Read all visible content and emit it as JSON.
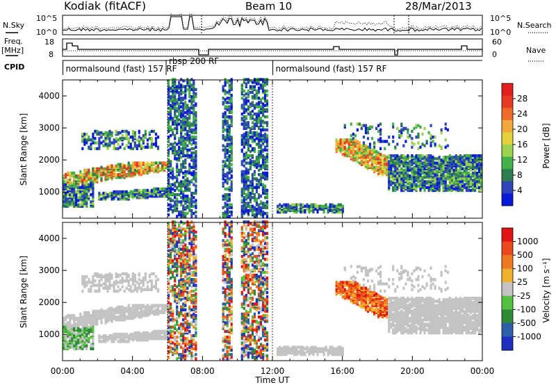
{
  "header": {
    "station": "Kodiak (fitACF)",
    "beam": "Beam 10",
    "date": "28/Mar/2013"
  },
  "strip_labels": {
    "nsky": "N.Sky",
    "nsearch": "N.Search",
    "freq": "Freq.",
    "freq_unit": "[MHz]",
    "nave": "Nave",
    "cpid": "CPID"
  },
  "noise_ticks": {
    "top": "10^5",
    "bottom": "10^0"
  },
  "freq_ticks": {
    "top": "18",
    "bottom": "8"
  },
  "nave_ticks": {
    "top": "60",
    "bottom": "0"
  },
  "cpid_labels": [
    {
      "text": "normalsound (fast) 157 RF",
      "hour": 0.1
    },
    {
      "text": "rbsp 200 RF",
      "hour": 6.0
    },
    {
      "text": "normalsound (fast) 157 RF",
      "hour": 12.1
    }
  ],
  "chart_data": [
    {
      "type": "heatmap",
      "panel": "power",
      "ylabel": "Slant Range [km]",
      "xlabel": "Time UT",
      "xlim": [
        0,
        24
      ],
      "ylim": [
        180,
        4500
      ],
      "y_ticks": [
        "1000",
        "2000",
        "3000",
        "4000"
      ],
      "x_tick_labels": [
        "00:00",
        "04:00",
        "08:00",
        "12:00",
        "16:00",
        "20:00",
        "00:00"
      ],
      "colorbar": {
        "label": "Power [dB]",
        "ticks": [
          "4",
          "8",
          "12",
          "16",
          "20",
          "24",
          "28"
        ],
        "colors": [
          "#0a1bd8",
          "#2e46b8",
          "#2f7c4f",
          "#43b04b",
          "#9dd24c",
          "#e4d23c",
          "#f2a83b",
          "#f06a2a",
          "#e63a22",
          "#e21f1f"
        ]
      }
    },
    {
      "type": "heatmap",
      "panel": "velocity",
      "ylabel": "Slant Range [km]",
      "xlabel": "Time UT",
      "xlim": [
        0,
        24
      ],
      "ylim": [
        180,
        4500
      ],
      "y_ticks": [
        "1000",
        "2000",
        "3000",
        "4000"
      ],
      "x_tick_labels": [
        "00:00",
        "04:00",
        "08:00",
        "12:00",
        "16:00",
        "20:00",
        "00:00"
      ],
      "colorbar": {
        "label": "Velocity [m s⁻¹]",
        "ticks": [
          "1000",
          "500",
          "100",
          "25",
          "-25",
          "-100",
          "-500",
          "-1000"
        ],
        "colors": [
          "#1f2fbf",
          "#2f5fa8",
          "#2f8a3a",
          "#55c040",
          "#c3c3c3",
          "#f0b030",
          "#f07a20",
          "#e84a1e",
          "#e01414"
        ]
      }
    }
  ],
  "axis": {
    "xlabel": "Time UT"
  }
}
